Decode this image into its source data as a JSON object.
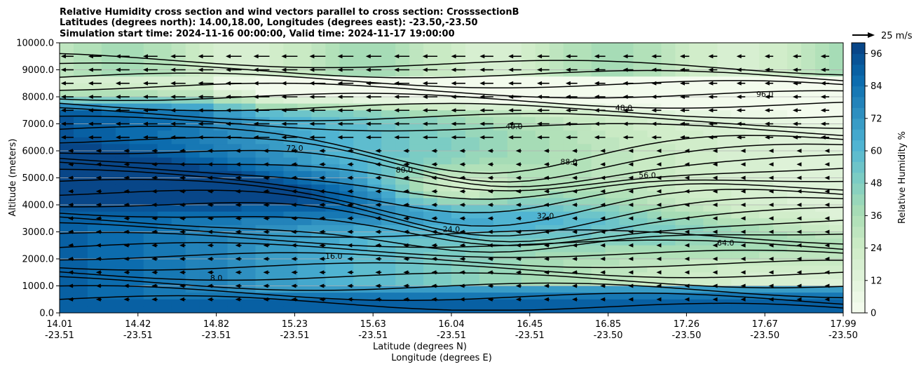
{
  "chart_data": {
    "type": "contour",
    "title_lines": [
      "Relative Humidity cross section and wind vectors parallel to cross section: CrosssectionB",
      "Latitudes (degrees north): 14.00,18.00, Longitudes (degrees east): -23.50,-23.50",
      "Simulation start time: 2024-11-16 00:00:00, Valid time: 2024-11-17 19:00:00"
    ],
    "ylabel": "Altitude (meters)",
    "xlabel_lat": "Latitude (degrees N)",
    "xlabel_lon": "Longitude (degrees E)",
    "ylim": [
      0,
      10000
    ],
    "y_ticks": [
      "0.0",
      "1000.0",
      "2000.0",
      "3000.0",
      "4000.0",
      "5000.0",
      "6000.0",
      "7000.0",
      "8000.0",
      "9000.0",
      "10000.0"
    ],
    "x_ticks": [
      {
        "lat": "14.01",
        "lon": "-23.51"
      },
      {
        "lat": "14.42",
        "lon": "-23.51"
      },
      {
        "lat": "14.82",
        "lon": "-23.51"
      },
      {
        "lat": "15.23",
        "lon": "-23.51"
      },
      {
        "lat": "15.63",
        "lon": "-23.51"
      },
      {
        "lat": "16.04",
        "lon": "-23.51"
      },
      {
        "lat": "16.45",
        "lon": "-23.51"
      },
      {
        "lat": "16.85",
        "lon": "-23.50"
      },
      {
        "lat": "17.26",
        "lon": "-23.50"
      },
      {
        "lat": "17.67",
        "lon": "-23.50"
      },
      {
        "lat": "17.99",
        "lon": "-23.50"
      }
    ],
    "colorbar": {
      "label": "Relative Humidity %",
      "ticks": [
        "0",
        "12",
        "24",
        "36",
        "48",
        "60",
        "72",
        "84",
        "96"
      ],
      "min": 0,
      "max": 100,
      "colors": [
        "#f7fcf0",
        "#e0f3db",
        "#ccebc5",
        "#a8ddb5",
        "#7bccc4",
        "#4eb3d3",
        "#2b8cbe",
        "#0868ac",
        "#084081"
      ]
    },
    "wind_key": {
      "label": "25 m/s",
      "speed": 25
    },
    "contour_labels": [
      "8.0",
      "16.0",
      "24.0",
      "32.0",
      "40.0",
      "48.0",
      "56.0",
      "64.0",
      "72.0",
      "80.0",
      "88.0",
      "96.0"
    ],
    "grid": "horizontal"
  }
}
